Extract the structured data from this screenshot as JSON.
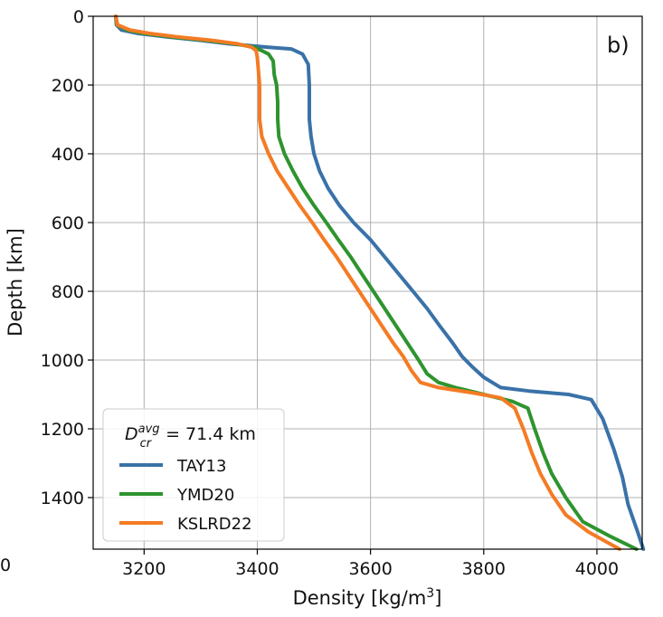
{
  "panel_label": "b)",
  "legend": {
    "title_main": "D",
    "title_sup": "avg",
    "title_sub": "cr",
    "title_rest": " = 71.4 km"
  },
  "stray_tick_fragment": "0",
  "chart_data": {
    "type": "line",
    "xlabel": "Density [kg/m³]",
    "xlabel_base": "Density [kg/m",
    "xlabel_sup": "3",
    "xlabel_close": "]",
    "ylabel": "Depth [km]",
    "xlim": [
      3110,
      4080
    ],
    "ylim": [
      1550,
      0
    ],
    "y_inverted": true,
    "grid": true,
    "legend_position": "lower-left",
    "xticks": [
      3200,
      3400,
      3600,
      3800,
      4000
    ],
    "yticks": [
      0,
      200,
      400,
      600,
      800,
      1000,
      1200,
      1400
    ],
    "series": [
      {
        "name": "TAY13",
        "color": "#3a72a8",
        "points": [
          [
            3150,
            0
          ],
          [
            3151,
            25
          ],
          [
            3160,
            40
          ],
          [
            3190,
            50
          ],
          [
            3240,
            60
          ],
          [
            3300,
            70
          ],
          [
            3350,
            80
          ],
          [
            3420,
            90
          ],
          [
            3460,
            95
          ],
          [
            3480,
            110
          ],
          [
            3490,
            140
          ],
          [
            3492,
            200
          ],
          [
            3492,
            300
          ],
          [
            3495,
            350
          ],
          [
            3500,
            400
          ],
          [
            3510,
            450
          ],
          [
            3525,
            500
          ],
          [
            3545,
            550
          ],
          [
            3570,
            600
          ],
          [
            3600,
            650
          ],
          [
            3625,
            700
          ],
          [
            3650,
            750
          ],
          [
            3675,
            800
          ],
          [
            3700,
            850
          ],
          [
            3722,
            900
          ],
          [
            3745,
            950
          ],
          [
            3762,
            990
          ],
          [
            3780,
            1020
          ],
          [
            3800,
            1050
          ],
          [
            3830,
            1080
          ],
          [
            3880,
            1090
          ],
          [
            3950,
            1100
          ],
          [
            3990,
            1115
          ],
          [
            4010,
            1170
          ],
          [
            4030,
            1260
          ],
          [
            4045,
            1340
          ],
          [
            4055,
            1420
          ],
          [
            4072,
            1500
          ],
          [
            4082,
            1550
          ]
        ]
      },
      {
        "name": "YMD20",
        "color": "#2e942e",
        "points": [
          [
            3150,
            0
          ],
          [
            3152,
            25
          ],
          [
            3170,
            40
          ],
          [
            3200,
            50
          ],
          [
            3250,
            60
          ],
          [
            3310,
            70
          ],
          [
            3360,
            80
          ],
          [
            3395,
            90
          ],
          [
            3408,
            100
          ],
          [
            3420,
            110
          ],
          [
            3428,
            130
          ],
          [
            3430,
            170
          ],
          [
            3434,
            200
          ],
          [
            3436,
            250
          ],
          [
            3436,
            300
          ],
          [
            3438,
            350
          ],
          [
            3448,
            400
          ],
          [
            3463,
            450
          ],
          [
            3480,
            500
          ],
          [
            3500,
            550
          ],
          [
            3522,
            600
          ],
          [
            3543,
            650
          ],
          [
            3565,
            700
          ],
          [
            3585,
            750
          ],
          [
            3605,
            800
          ],
          [
            3625,
            850
          ],
          [
            3645,
            900
          ],
          [
            3665,
            950
          ],
          [
            3685,
            1000
          ],
          [
            3700,
            1040
          ],
          [
            3720,
            1065
          ],
          [
            3750,
            1080
          ],
          [
            3800,
            1100
          ],
          [
            3850,
            1120
          ],
          [
            3878,
            1140
          ],
          [
            3890,
            1200
          ],
          [
            3905,
            1270
          ],
          [
            3920,
            1330
          ],
          [
            3945,
            1400
          ],
          [
            3975,
            1470
          ],
          [
            4020,
            1510
          ],
          [
            4070,
            1550
          ]
        ]
      },
      {
        "name": "KSLRD22",
        "color": "#f47b24",
        "points": [
          [
            3150,
            0
          ],
          [
            3153,
            25
          ],
          [
            3175,
            40
          ],
          [
            3210,
            50
          ],
          [
            3260,
            60
          ],
          [
            3320,
            70
          ],
          [
            3365,
            80
          ],
          [
            3390,
            90
          ],
          [
            3398,
            100
          ],
          [
            3400,
            120
          ],
          [
            3404,
            200
          ],
          [
            3404,
            250
          ],
          [
            3404,
            300
          ],
          [
            3408,
            350
          ],
          [
            3420,
            400
          ],
          [
            3435,
            450
          ],
          [
            3455,
            500
          ],
          [
            3475,
            550
          ],
          [
            3497,
            600
          ],
          [
            3518,
            650
          ],
          [
            3540,
            700
          ],
          [
            3560,
            750
          ],
          [
            3580,
            800
          ],
          [
            3600,
            850
          ],
          [
            3620,
            900
          ],
          [
            3640,
            950
          ],
          [
            3658,
            990
          ],
          [
            3672,
            1030
          ],
          [
            3688,
            1065
          ],
          [
            3720,
            1080
          ],
          [
            3780,
            1095
          ],
          [
            3830,
            1110
          ],
          [
            3855,
            1140
          ],
          [
            3870,
            1200
          ],
          [
            3885,
            1270
          ],
          [
            3900,
            1330
          ],
          [
            3920,
            1390
          ],
          [
            3945,
            1450
          ],
          [
            3985,
            1500
          ],
          [
            4040,
            1550
          ]
        ]
      }
    ]
  }
}
